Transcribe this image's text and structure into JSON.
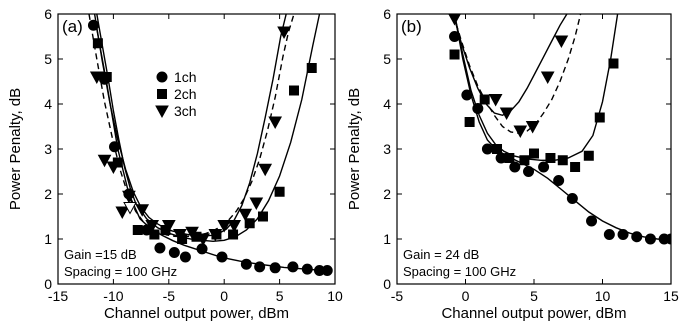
{
  "chart_data": [
    {
      "type": "scatter",
      "panel_label": "(a)",
      "xlabel": "Channel output power, dBm",
      "ylabel": "Power Penalty, dB",
      "xlim": [
        -15,
        10
      ],
      "ylim": [
        0,
        6
      ],
      "xticks": [
        "-15",
        "-10",
        "-5",
        "0",
        "5",
        "10"
      ],
      "yticks": [
        "0",
        "1",
        "2",
        "3",
        "4",
        "5",
        "6"
      ],
      "legend_position": "upper-left",
      "annotation": [
        "Gain =15 dB",
        "Spacing = 100 GHz"
      ],
      "series": [
        {
          "name": "1ch",
          "marker": "circle",
          "x": [
            -11.8,
            -10.8,
            -9.9,
            -8.6,
            -7.0,
            -5.8,
            -4.5,
            -3.5,
            -2.0,
            -0.2,
            2.0,
            3.2,
            4.6,
            6.2,
            7.5,
            8.6,
            9.3
          ],
          "y": [
            5.75,
            4.55,
            3.05,
            2.0,
            1.2,
            0.8,
            0.7,
            0.6,
            0.78,
            0.6,
            0.44,
            0.38,
            0.36,
            0.38,
            0.33,
            0.3,
            0.3
          ],
          "fit_x": [
            -11.6,
            -10.6,
            -9.6,
            -8.6,
            -7.6,
            -6.6,
            -5.6,
            -4.6,
            -3.6,
            -2.6,
            -1.6,
            -0.6,
            0.4,
            1.4,
            2.4,
            3.4,
            4.4,
            5.4,
            6.4,
            7.4,
            8.4,
            9.4
          ],
          "fit_y": [
            5.8,
            4.45,
            3.0,
            2.0,
            1.45,
            1.22,
            1.08,
            0.96,
            0.86,
            0.78,
            0.7,
            0.62,
            0.56,
            0.51,
            0.47,
            0.43,
            0.4,
            0.37,
            0.35,
            0.33,
            0.31,
            0.3
          ]
        },
        {
          "name": "2ch",
          "marker": "square",
          "x": [
            -11.4,
            -10.6,
            -9.6,
            -7.8,
            -6.3,
            -5.3,
            -3.8,
            -2.5,
            -0.7,
            0.8,
            2.3,
            3.5,
            5.0,
            6.3,
            7.9
          ],
          "y": [
            5.35,
            4.6,
            2.7,
            1.2,
            1.1,
            1.2,
            1.0,
            1.05,
            1.1,
            1.1,
            1.35,
            1.5,
            2.05,
            4.3,
            4.8
          ],
          "fit_x": [
            -11.5,
            -11.0,
            -10.5,
            -10.0,
            -9.5,
            -9.0,
            -8.5,
            -8.0,
            -7.0,
            -6.0,
            -5.0,
            -4.0,
            -3.0,
            -2.0,
            -1.0,
            0.0,
            1.0,
            2.0,
            3.0,
            4.0,
            5.0,
            6.0,
            7.0,
            8.0,
            8.6
          ],
          "fit_y": [
            6.0,
            5.3,
            4.6,
            3.85,
            3.2,
            2.6,
            2.15,
            1.8,
            1.45,
            1.25,
            1.13,
            1.05,
            1.0,
            0.97,
            0.95,
            0.97,
            1.05,
            1.2,
            1.45,
            1.85,
            2.4,
            3.15,
            4.1,
            5.3,
            6.0
          ]
        },
        {
          "name": "3ch",
          "marker": "triangle",
          "x": [
            -11.5,
            -10.8,
            -10.0,
            -9.2,
            -8.6,
            -7.4,
            -6.5,
            -5.0,
            -4.0,
            -2.9,
            -1.9,
            -0.8,
            0.0,
            0.9,
            1.9,
            2.9,
            3.7,
            4.6,
            5.4
          ],
          "y": [
            4.6,
            2.75,
            2.6,
            1.6,
            1.95,
            1.65,
            1.3,
            1.3,
            1.1,
            1.15,
            1.0,
            1.1,
            1.3,
            1.3,
            1.55,
            1.8,
            2.55,
            3.6,
            5.6
          ],
          "fit_x": [
            -11.7,
            -11.0,
            -10.3,
            -9.6,
            -8.9,
            -8.2,
            -7.5,
            -6.8,
            -6.1,
            -5.4,
            -4.7,
            -4.0,
            -3.3,
            -2.6,
            -1.9,
            -1.2,
            -0.5,
            0.2,
            0.9,
            1.6,
            2.3,
            3.0,
            3.7,
            4.4,
            5.1,
            5.6
          ],
          "fit_y": [
            6.0,
            4.95,
            4.0,
            3.2,
            2.55,
            2.05,
            1.7,
            1.48,
            1.35,
            1.25,
            1.18,
            1.14,
            1.1,
            1.08,
            1.07,
            1.08,
            1.12,
            1.22,
            1.42,
            1.75,
            2.25,
            2.9,
            3.7,
            4.55,
            5.5,
            6.0
          ],
          "dash_x": [
            -12.2,
            -11.5,
            -10.8,
            -10.1,
            -9.4,
            -8.7,
            -8.0,
            -7.3,
            -6.6,
            -5.9,
            -5.2,
            -4.5,
            -3.8,
            -3.1,
            -2.4,
            -1.7,
            -1.0,
            -0.3,
            0.4,
            1.1,
            1.8,
            2.5,
            3.2,
            3.9,
            4.6,
            5.3,
            5.8,
            6.3
          ],
          "dash_y": [
            6.0,
            5.0,
            4.05,
            3.25,
            2.55,
            2.0,
            1.62,
            1.38,
            1.24,
            1.15,
            1.09,
            1.06,
            1.05,
            1.06,
            1.08,
            1.12,
            1.18,
            1.28,
            1.42,
            1.62,
            1.9,
            2.28,
            2.78,
            3.4,
            4.15,
            5.05,
            5.6,
            6.0
          ],
          "open_marker": {
            "x": -8.5,
            "y": 1.7
          }
        }
      ]
    },
    {
      "type": "scatter",
      "panel_label": "(b)",
      "xlabel": "Channel output power, dBm",
      "ylabel": "Power Penalty, dB",
      "xlim": [
        -5,
        15
      ],
      "ylim": [
        0,
        6
      ],
      "xticks": [
        "-5",
        "0",
        "5",
        "10",
        "15"
      ],
      "yticks": [
        "0",
        "1",
        "2",
        "3",
        "4",
        "5",
        "6"
      ],
      "annotation": [
        "Gain = 24 dB",
        "Spacing = 100 GHz"
      ],
      "series": [
        {
          "name": "1ch",
          "marker": "circle",
          "x": [
            -0.8,
            0.1,
            0.9,
            1.6,
            2.6,
            3.6,
            4.6,
            5.7,
            6.8,
            7.8,
            9.2,
            10.5,
            11.5,
            12.5,
            13.5,
            14.5,
            15.0
          ],
          "y": [
            5.5,
            4.2,
            3.9,
            3.0,
            2.8,
            2.6,
            2.5,
            2.6,
            2.3,
            1.9,
            1.4,
            1.1,
            1.1,
            1.05,
            1.0,
            1.0,
            1.0
          ],
          "fit_x": [
            -0.8,
            -0.2,
            0.4,
            1.0,
            1.6,
            2.2,
            3.0,
            4.0,
            5.0,
            6.0,
            7.0,
            8.0,
            9.0,
            10.0,
            11.0,
            12.0,
            13.0,
            14.0,
            15.0
          ],
          "fit_y": [
            6.0,
            5.0,
            4.2,
            3.6,
            3.2,
            3.0,
            2.85,
            2.7,
            2.55,
            2.35,
            2.1,
            1.85,
            1.6,
            1.4,
            1.25,
            1.13,
            1.05,
            1.0,
            0.98
          ]
        },
        {
          "name": "2ch",
          "marker": "square",
          "x": [
            -0.8,
            0.3,
            1.4,
            2.3,
            3.2,
            4.3,
            5.0,
            6.2,
            7.1,
            8.0,
            9.0,
            9.8,
            10.8
          ],
          "y": [
            5.1,
            3.6,
            4.1,
            3.0,
            2.8,
            2.75,
            2.9,
            2.8,
            2.75,
            2.6,
            2.85,
            3.7,
            4.9
          ],
          "fit_x": [
            -0.8,
            -0.2,
            0.4,
            1.0,
            1.6,
            2.2,
            2.8,
            3.5,
            4.5,
            5.5,
            6.5,
            7.5,
            8.5,
            9.3,
            10.0,
            10.6,
            11.1
          ],
          "fit_y": [
            6.0,
            5.1,
            4.3,
            3.75,
            3.35,
            3.1,
            2.95,
            2.85,
            2.78,
            2.75,
            2.75,
            2.8,
            2.95,
            3.3,
            4.05,
            5.0,
            6.0
          ]
        },
        {
          "name": "3ch",
          "marker": "triangle",
          "x": [
            -0.8,
            2.2,
            3.0,
            4.0,
            4.9,
            6.0,
            7.0
          ],
          "y": [
            5.9,
            4.1,
            3.8,
            3.4,
            3.5,
            4.6,
            5.4
          ],
          "fit_x": [
            -0.9,
            -0.3,
            0.3,
            0.9,
            1.5,
            2.1,
            2.7,
            3.3,
            3.9,
            4.5,
            5.1,
            5.7,
            6.3,
            6.9,
            7.4
          ],
          "fit_y": [
            6.0,
            5.35,
            4.8,
            4.35,
            4.0,
            3.8,
            3.75,
            3.85,
            4.05,
            4.35,
            4.7,
            5.05,
            5.4,
            5.75,
            6.0
          ],
          "dash_x": [
            -0.9,
            -0.3,
            0.3,
            0.9,
            1.5,
            2.1,
            2.7,
            3.3,
            3.9,
            4.5,
            5.1,
            5.7,
            6.3,
            6.9,
            7.5,
            8.0,
            8.4
          ],
          "dash_y": [
            6.0,
            5.4,
            4.85,
            4.4,
            4.05,
            3.75,
            3.5,
            3.38,
            3.35,
            3.4,
            3.55,
            3.8,
            4.1,
            4.5,
            5.0,
            5.5,
            6.0
          ]
        }
      ]
    }
  ]
}
